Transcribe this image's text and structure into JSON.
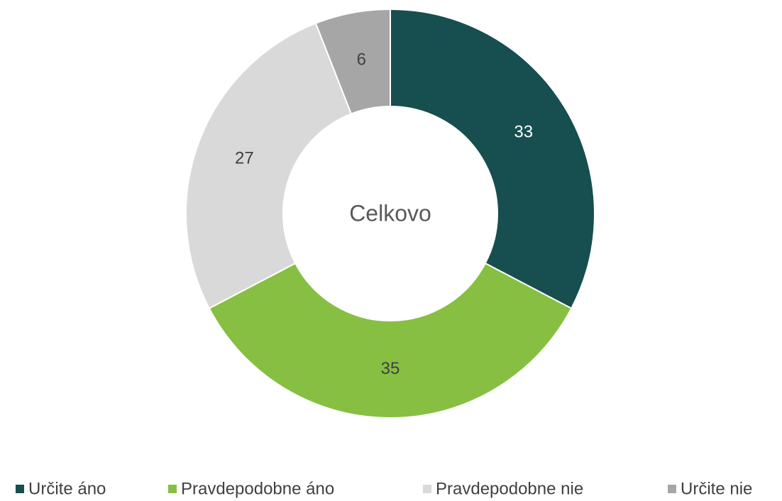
{
  "chart_data": {
    "type": "donut",
    "center_text": "Celkovo",
    "categories": [
      "Určite áno",
      "Pravdepodobne áno",
      "Pravdepodobne nie",
      "Určite nie"
    ],
    "values": [
      33,
      35,
      27,
      6
    ],
    "colors": [
      "#174e4f",
      "#86bf42",
      "#d9d9d9",
      "#a6a6a6"
    ],
    "legend": "bottom"
  }
}
